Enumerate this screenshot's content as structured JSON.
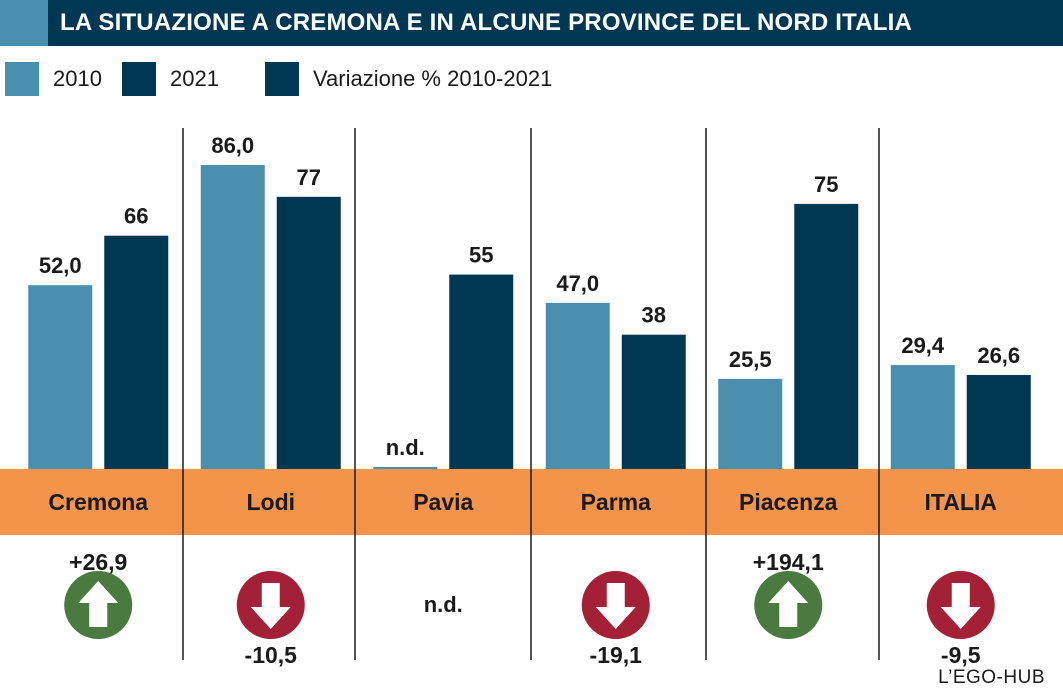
{
  "title": "LA SITUAZIONE A CREMONA E IN ALCUNE PROVINCE DEL NORD ITALIA",
  "colors": {
    "c2010": "#4a8fae",
    "c2021": "#003854",
    "band": "#f4934a",
    "up": "#4a7a3f",
    "down": "#a32036",
    "divider": "#1a1a1a"
  },
  "legend": [
    {
      "label": "2010",
      "color": "#4a8fae"
    },
    {
      "label": "2021",
      "color": "#003854"
    },
    {
      "label": "Variazione % 2010-2021",
      "color": "#003854"
    }
  ],
  "credit": "L’EGO-HUB",
  "chart_data": {
    "type": "bar",
    "categories": [
      "Cremona",
      "Lodi",
      "Pavia",
      "Parma",
      "Piacenza",
      "ITALIA"
    ],
    "series": [
      {
        "name": "2010",
        "values": [
          52.0,
          86.0,
          null,
          47.0,
          25.5,
          29.4
        ],
        "labels": [
          "52,0",
          "86,0",
          "n.d.",
          "47,0",
          "25,5",
          "29,4"
        ]
      },
      {
        "name": "2021",
        "values": [
          66,
          77,
          55,
          38,
          75,
          26.6
        ],
        "labels": [
          "66",
          "77",
          "55",
          "38",
          "75",
          "26,6"
        ]
      }
    ],
    "variation": [
      {
        "value": 26.9,
        "label": "+26,9",
        "direction": "up",
        "icon": "arrow-up-icon"
      },
      {
        "value": -10.5,
        "label": "-10,5",
        "direction": "down",
        "icon": "arrow-down-icon"
      },
      {
        "value": null,
        "label": "n.d.",
        "direction": "none",
        "icon": ""
      },
      {
        "value": -19.1,
        "label": "-19,1",
        "direction": "down",
        "icon": "arrow-down-icon"
      },
      {
        "value": 194.1,
        "label": "+194,1",
        "direction": "up",
        "icon": "arrow-up-icon"
      },
      {
        "value": -9.5,
        "label": "-9,5",
        "direction": "down",
        "icon": "arrow-down-icon"
      }
    ],
    "ylim": [
      0,
      86
    ],
    "grid": false,
    "legend_position": "top-left"
  }
}
